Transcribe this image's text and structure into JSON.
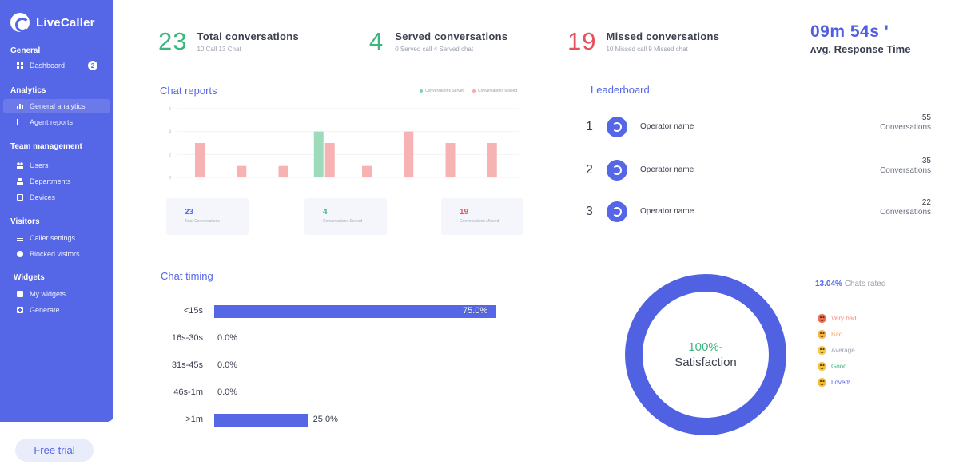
{
  "app": {
    "name": "LiveCaller"
  },
  "sidebar": {
    "sections": [
      {
        "title": "General",
        "items": [
          {
            "label": "Dashboard",
            "icon": "dashboard-icon",
            "badge": "2"
          }
        ]
      },
      {
        "title": "Analytics",
        "items": [
          {
            "label": "General analytics",
            "icon": "analytics-icon",
            "active": true
          },
          {
            "label": "Agent reports",
            "icon": "agent-reports-icon"
          }
        ]
      },
      {
        "title": "Team management",
        "items": [
          {
            "label": "Users",
            "icon": "users-icon"
          },
          {
            "label": "Departments",
            "icon": "departments-icon"
          },
          {
            "label": "Devices",
            "icon": "devices-icon"
          }
        ]
      },
      {
        "title": "Visitors",
        "items": [
          {
            "label": "Caller settings",
            "icon": "caller-settings-icon"
          },
          {
            "label": "Blocked visitors",
            "icon": "blocked-visitors-icon"
          }
        ]
      },
      {
        "title": "Widgets",
        "items": [
          {
            "label": "My widgets",
            "icon": "widgets-icon"
          },
          {
            "label": "Generate",
            "icon": "generate-icon"
          }
        ]
      }
    ],
    "free_trial": "Free trial"
  },
  "stats": {
    "total": {
      "value": "23",
      "title": "Total conversations",
      "sub": "10 Call  13 Chat"
    },
    "served": {
      "value": "4",
      "title": "Served conversations",
      "sub": "0 Served call  4 Served chat"
    },
    "missed": {
      "value": "19",
      "title": "Missed conversations",
      "sub": "10 Missed call  9 Missed chat"
    },
    "response": {
      "value": "09m 54s '",
      "label": "ʌvg. Response Time"
    }
  },
  "chat_reports": {
    "title": "Chat reports",
    "legend": [
      {
        "name": "Conversations Served",
        "color": "#7fd3a8"
      },
      {
        "name": "Conversations Missed",
        "color": "#f7aaaa"
      }
    ],
    "cards": [
      {
        "value": "23",
        "label": "Total Conversations",
        "color": "#5566e6"
      },
      {
        "value": "4",
        "label": "Conversations Served",
        "color": "#3db57f"
      },
      {
        "value": "19",
        "label": "Conversations Missed",
        "color": "#e5525e"
      }
    ]
  },
  "chart_data": {
    "type": "bar",
    "categories": [
      "",
      "",
      "",
      "",
      "",
      "",
      "",
      ""
    ],
    "series": [
      {
        "name": "Conversations Served",
        "values": [
          0,
          0,
          0,
          4,
          0,
          0,
          0,
          0
        ],
        "color": "#9edbbb"
      },
      {
        "name": "Conversations Missed",
        "values": [
          3,
          1,
          1,
          3,
          1,
          4,
          3,
          3
        ],
        "color": "#f7b3b3"
      }
    ],
    "yticks": [
      "0",
      "2",
      "4",
      "6"
    ],
    "ylim": [
      0,
      6
    ]
  },
  "leaderboard": {
    "title": "Leaderboard",
    "rows": [
      {
        "rank": "1",
        "name": "Operator name",
        "count": "55",
        "unit": "Conversations"
      },
      {
        "rank": "2",
        "name": "Operator name",
        "count": "35",
        "unit": "Conversations"
      },
      {
        "rank": "3",
        "name": "Operator name",
        "count": "22",
        "unit": "Conversations"
      }
    ]
  },
  "chat_timing": {
    "title": "Chat timing",
    "rows": [
      {
        "label": "<15s",
        "value": "75.0%",
        "fraction": 0.75
      },
      {
        "label": "16s-30s",
        "value": "0.0%",
        "fraction": 0
      },
      {
        "label": "31s-45s",
        "value": "0.0%",
        "fraction": 0
      },
      {
        "label": "46s-1m",
        "value": "0.0%",
        "fraction": 0
      },
      {
        "label": ">1m",
        "value": "25.0%",
        "fraction": 0.25
      }
    ]
  },
  "satisfaction": {
    "percent": "100%-",
    "label": "Satisfaction",
    "rated_pct": "13.04%",
    "rated_label": "Chats rated",
    "ratings": [
      {
        "label": "Very bad",
        "color": "#f08a7a",
        "face": "#ef6b55"
      },
      {
        "label": "Bad",
        "color": "#f5a86a",
        "face": "#f5b44a"
      },
      {
        "label": "Average",
        "color": "#9aa0ad",
        "face": "#f7c948"
      },
      {
        "label": "Good",
        "color": "#3db57f",
        "face": "#f5c238"
      },
      {
        "label": "Loved!",
        "color": "#5566e6",
        "face": "#f3bd2e"
      }
    ]
  }
}
